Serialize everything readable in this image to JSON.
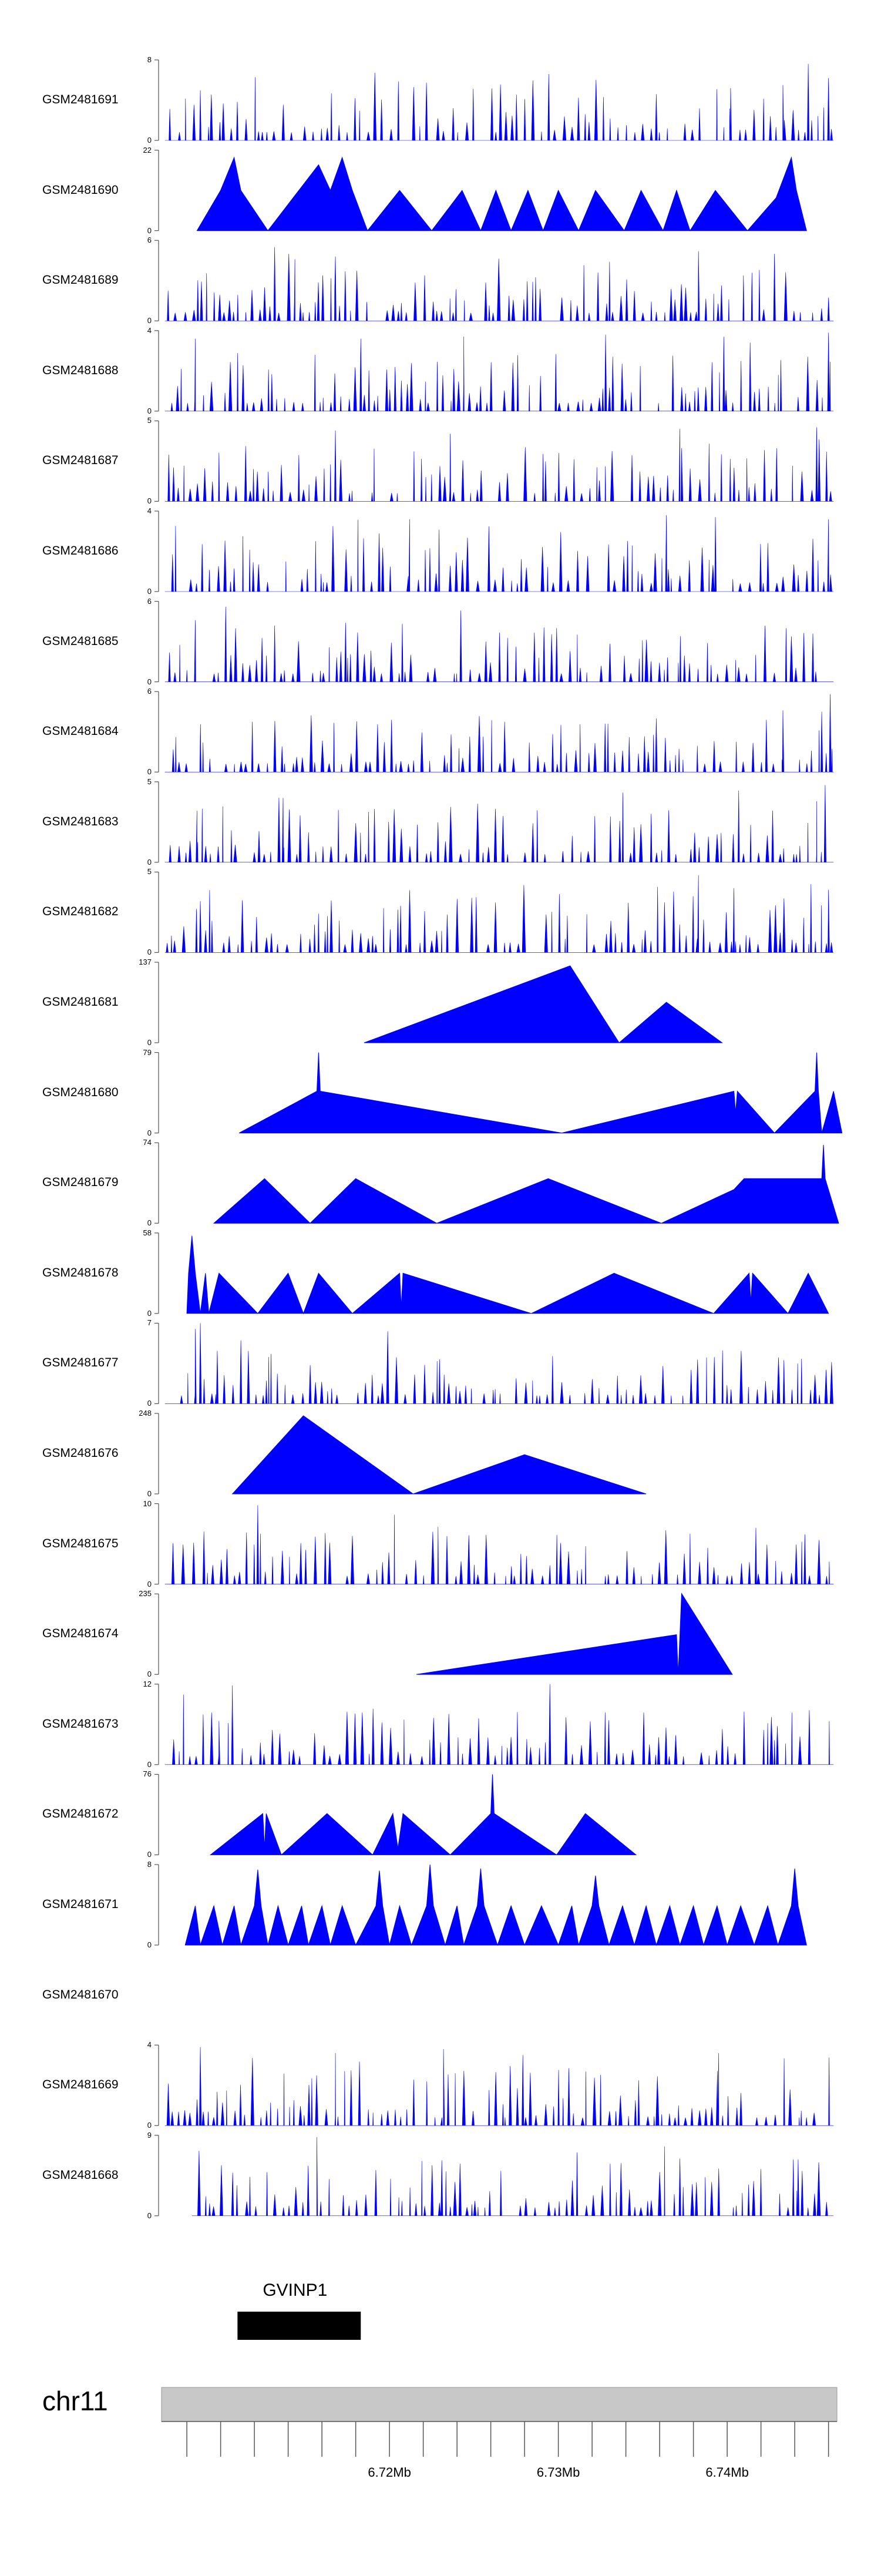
{
  "chart_data": {
    "type": "area",
    "title": "",
    "chromosome": "chr11",
    "xlim": [
      6.7065,
      6.7465
    ],
    "x_ticks": [
      "6.72Mb",
      "6.73Mb",
      "6.74Mb"
    ],
    "x_tick_values": [
      6.72,
      6.73,
      6.74
    ],
    "minor_tick_step": 0.002,
    "gene": {
      "name": "GVINP1",
      "start": 6.711,
      "end": 6.7183
    },
    "tracks": [
      {
        "name": "GSM2481691",
        "ymax": "8",
        "ymin": "0",
        "mode": "dense",
        "seed": 91,
        "peaks": [
          [
            6.7448,
            7.6
          ],
          [
            6.7402,
            5.2
          ],
          [
            6.7433,
            5.5
          ],
          [
            6.7358,
            4.6
          ],
          [
            6.746,
            6.2
          ]
        ]
      },
      {
        "name": "GSM2481690",
        "ymax": "22",
        "ymin": "0",
        "mode": "sparse",
        "points": [
          [
            6.7086,
            0
          ],
          [
            6.71,
            11
          ],
          [
            6.7108,
            20
          ],
          [
            6.7112,
            11
          ],
          [
            6.7128,
            0
          ],
          [
            6.7143,
            9
          ],
          [
            6.7158,
            18
          ],
          [
            6.7165,
            11
          ],
          [
            6.7172,
            20
          ],
          [
            6.7178,
            11
          ],
          [
            6.7187,
            0
          ],
          [
            6.7206,
            11
          ],
          [
            6.7225,
            0
          ],
          [
            6.7243,
            11
          ],
          [
            6.7254,
            0
          ],
          [
            6.7263,
            11
          ],
          [
            6.7272,
            0
          ],
          [
            6.7282,
            11
          ],
          [
            6.7291,
            0
          ],
          [
            6.73,
            11
          ],
          [
            6.7312,
            0
          ],
          [
            6.7322,
            11
          ],
          [
            6.7339,
            0
          ],
          [
            6.7349,
            11
          ],
          [
            6.7362,
            0
          ],
          [
            6.737,
            11
          ],
          [
            6.7378,
            0
          ],
          [
            6.7393,
            11
          ],
          [
            6.7412,
            0
          ],
          [
            6.7429,
            9
          ],
          [
            6.7438,
            20
          ],
          [
            6.7441,
            11
          ],
          [
            6.7447,
            0
          ]
        ]
      },
      {
        "name": "GSM2481689",
        "ymax": "6",
        "ymin": "0",
        "mode": "dense",
        "seed": 89,
        "peaks": [
          [
            6.7132,
            5.5
          ],
          [
            6.7144,
            4.6
          ],
          [
            6.7168,
            4.8
          ],
          [
            6.7383,
            5.2
          ],
          [
            6.7428,
            5.0
          ]
        ]
      },
      {
        "name": "GSM2481688",
        "ymax": "4",
        "ymin": "0",
        "mode": "dense",
        "seed": 88,
        "peaks": [
          [
            6.7085,
            3.6
          ],
          [
            6.7183,
            3.6
          ],
          [
            6.7244,
            3.7
          ],
          [
            6.7328,
            3.8
          ],
          [
            6.7398,
            3.7
          ],
          [
            6.746,
            3.9
          ]
        ]
      },
      {
        "name": "GSM2481687",
        "ymax": "5",
        "ymin": "0",
        "mode": "dense",
        "seed": 87,
        "peaks": [
          [
            6.7168,
            4.4
          ],
          [
            6.7236,
            4.2
          ],
          [
            6.7372,
            4.5
          ],
          [
            6.7453,
            4.6
          ]
        ]
      },
      {
        "name": "GSM2481686",
        "ymax": "4",
        "ymin": "0",
        "mode": "dense",
        "seed": 86,
        "peaks": [
          [
            6.7364,
            3.8
          ],
          [
            6.7393,
            3.7
          ],
          [
            6.7212,
            3.6
          ],
          [
            6.746,
            3.6
          ]
        ]
      },
      {
        "name": "GSM2481685",
        "ymax": "6",
        "ymin": "0",
        "mode": "dense",
        "seed": 85,
        "peaks": [
          [
            6.7085,
            4.6
          ],
          [
            6.7103,
            5.6
          ],
          [
            6.7132,
            4.2
          ],
          [
            6.7174,
            4.4
          ],
          [
            6.7299,
            4.0
          ]
        ]
      },
      {
        "name": "GSM2481684",
        "ymax": "6",
        "ymin": "0",
        "mode": "dense",
        "seed": 84,
        "peaks": [
          [
            6.7358,
            4.0
          ],
          [
            6.7433,
            4.6
          ],
          [
            6.7461,
            5.8
          ],
          [
            6.7456,
            4.5
          ]
        ]
      },
      {
        "name": "GSM2481683",
        "ymax": "5",
        "ymin": "0",
        "mode": "dense",
        "seed": 83,
        "peaks": [
          [
            6.7137,
            4.0
          ],
          [
            6.7458,
            4.8
          ],
          [
            6.7453,
            3.8
          ],
          [
            6.7086,
            3.2
          ]
        ]
      },
      {
        "name": "GSM2481682",
        "ymax": "5",
        "ymin": "0",
        "mode": "dense",
        "seed": 82,
        "peaks": [
          [
            6.7383,
            4.8
          ],
          [
            6.7404,
            4.0
          ],
          [
            6.7088,
            3.2
          ],
          [
            6.746,
            3.9
          ]
        ]
      },
      {
        "name": "GSM2481681",
        "ymax": "137",
        "ymin": "0",
        "mode": "sparse",
        "points": [
          [
            6.7185,
            0
          ],
          [
            6.7307,
            131
          ],
          [
            6.7336,
            0
          ],
          [
            6.7364,
            69
          ],
          [
            6.7397,
            0
          ]
        ]
      },
      {
        "name": "GSM2481680",
        "ymax": "79",
        "ymin": "0",
        "mode": "sparse",
        "points": [
          [
            6.7111,
            0
          ],
          [
            6.7157,
            41
          ],
          [
            6.7158,
            79
          ],
          [
            6.7159,
            41
          ],
          [
            6.7302,
            0
          ],
          [
            6.7404,
            41
          ],
          [
            6.7405,
            20
          ],
          [
            6.7406,
            41
          ],
          [
            6.7428,
            0
          ],
          [
            6.7452,
            41
          ],
          [
            6.7453,
            79
          ],
          [
            6.7454,
            41
          ],
          [
            6.7456,
            0
          ],
          [
            6.7463,
            41
          ],
          [
            6.7468,
            0
          ]
        ]
      },
      {
        "name": "GSM2481679",
        "ymax": "74",
        "ymin": "0",
        "mode": "sparse",
        "points": [
          [
            6.7096,
            0
          ],
          [
            6.7126,
            41
          ],
          [
            6.7153,
            0
          ],
          [
            6.718,
            41
          ],
          [
            6.7228,
            0
          ],
          [
            6.7294,
            41
          ],
          [
            6.7361,
            0
          ],
          [
            6.7404,
            31
          ],
          [
            6.741,
            41
          ],
          [
            6.7456,
            41
          ],
          [
            6.7457,
            72
          ],
          [
            6.7458,
            41
          ],
          [
            6.7466,
            0
          ]
        ]
      },
      {
        "name": "GSM2481678",
        "ymax": "58",
        "ymin": "0",
        "mode": "sparse",
        "points": [
          [
            6.708,
            0
          ],
          [
            6.7081,
            29
          ],
          [
            6.7083,
            56
          ],
          [
            6.7085,
            29
          ],
          [
            6.7088,
            0
          ],
          [
            6.7091,
            29
          ],
          [
            6.7093,
            0
          ],
          [
            6.7099,
            29
          ],
          [
            6.7122,
            0
          ],
          [
            6.714,
            29
          ],
          [
            6.7149,
            0
          ],
          [
            6.7158,
            29
          ],
          [
            6.7178,
            0
          ],
          [
            6.7206,
            29
          ],
          [
            6.7207,
            4
          ],
          [
            6.7208,
            29
          ],
          [
            6.7284,
            0
          ],
          [
            6.7333,
            29
          ],
          [
            6.7392,
            0
          ],
          [
            6.7413,
            29
          ],
          [
            6.7414,
            8
          ],
          [
            6.7415,
            29
          ],
          [
            6.7436,
            0
          ],
          [
            6.7448,
            29
          ],
          [
            6.746,
            0
          ]
        ]
      },
      {
        "name": "GSM2481677",
        "ymax": "7",
        "ymin": "0",
        "mode": "dense",
        "seed": 77,
        "peaks": [
          [
            6.7088,
            7.0
          ],
          [
            6.7085,
            6.5
          ],
          [
            6.7112,
            5.5
          ],
          [
            6.7098,
            4.6
          ]
        ]
      },
      {
        "name": "GSM2481676",
        "ymax": "248",
        "ymin": "0",
        "mode": "sparse",
        "points": [
          [
            6.7107,
            0
          ],
          [
            6.7149,
            241
          ],
          [
            6.7214,
            0
          ],
          [
            6.728,
            121
          ],
          [
            6.7352,
            0
          ]
        ]
      },
      {
        "name": "GSM2481675",
        "ymax": "10",
        "ymin": "0",
        "mode": "dense",
        "seed": 75,
        "peaks": [
          [
            6.7122,
            9.8
          ],
          [
            6.7417,
            7.0
          ],
          [
            6.7446,
            6.2
          ]
        ]
      },
      {
        "name": "GSM2481674",
        "ymax": "235",
        "ymin": "0",
        "mode": "sparse",
        "points": [
          [
            6.7216,
            0
          ],
          [
            6.737,
            116
          ],
          [
            6.7371,
            0
          ],
          [
            6.7372,
            116
          ],
          [
            6.7373,
            236
          ],
          [
            6.7403,
            0
          ]
        ]
      },
      {
        "name": "GSM2481673",
        "ymax": "12",
        "ymin": "0",
        "mode": "dense",
        "seed": 73,
        "peaks": [
          [
            6.7107,
            11.8
          ],
          [
            6.7295,
            12.0
          ],
          [
            6.7099,
            6.5
          ]
        ]
      },
      {
        "name": "GSM2481672",
        "ymax": "76",
        "ymin": "0",
        "mode": "sparse",
        "points": [
          [
            6.7094,
            0
          ],
          [
            6.7125,
            39
          ],
          [
            6.7126,
            6
          ],
          [
            6.7127,
            39
          ],
          [
            6.7136,
            0
          ],
          [
            6.7163,
            39
          ],
          [
            6.719,
            0
          ],
          [
            6.7202,
            39
          ],
          [
            6.7205,
            6
          ],
          [
            6.7208,
            39
          ],
          [
            6.7236,
            0
          ],
          [
            6.726,
            39
          ],
          [
            6.7261,
            76
          ],
          [
            6.7262,
            39
          ],
          [
            6.7299,
            0
          ],
          [
            6.7316,
            39
          ],
          [
            6.7346,
            0
          ]
        ]
      },
      {
        "name": "GSM2481671",
        "ymax": "8",
        "ymin": "0",
        "mode": "sparse",
        "points": [
          [
            6.7079,
            0
          ],
          [
            6.7085,
            3.9
          ],
          [
            6.7088,
            0
          ],
          [
            6.7096,
            3.9
          ],
          [
            6.7101,
            0
          ],
          [
            6.7108,
            3.9
          ],
          [
            6.7112,
            0
          ],
          [
            6.712,
            3.9
          ],
          [
            6.7122,
            7.5
          ],
          [
            6.7124,
            3.9
          ],
          [
            6.7128,
            0
          ],
          [
            6.7134,
            3.9
          ],
          [
            6.714,
            0
          ],
          [
            6.7148,
            3.9
          ],
          [
            6.7152,
            0
          ],
          [
            6.716,
            3.9
          ],
          [
            6.7165,
            0
          ],
          [
            6.7172,
            3.9
          ],
          [
            6.718,
            0
          ],
          [
            6.7192,
            3.9
          ],
          [
            6.7194,
            7.4
          ],
          [
            6.7196,
            3.9
          ],
          [
            6.72,
            0
          ],
          [
            6.7206,
            3.9
          ],
          [
            6.7213,
            0
          ],
          [
            6.7222,
            3.9
          ],
          [
            6.7224,
            8.0
          ],
          [
            6.7226,
            3.9
          ],
          [
            6.7233,
            0
          ],
          [
            6.724,
            3.9
          ],
          [
            6.7244,
            0
          ],
          [
            6.7252,
            3.9
          ],
          [
            6.7254,
            7.6
          ],
          [
            6.7256,
            3.9
          ],
          [
            6.7264,
            0
          ],
          [
            6.7272,
            3.9
          ],
          [
            6.728,
            0
          ],
          [
            6.729,
            3.9
          ],
          [
            6.73,
            0
          ],
          [
            6.7308,
            3.9
          ],
          [
            6.7312,
            0
          ],
          [
            6.732,
            3.9
          ],
          [
            6.7322,
            6.9
          ],
          [
            6.7324,
            3.9
          ],
          [
            6.733,
            0
          ],
          [
            6.7338,
            3.9
          ],
          [
            6.7345,
            0
          ],
          [
            6.7352,
            3.9
          ],
          [
            6.7358,
            0
          ],
          [
            6.7366,
            3.9
          ],
          [
            6.7372,
            0
          ],
          [
            6.738,
            3.9
          ],
          [
            6.7386,
            0
          ],
          [
            6.7394,
            3.9
          ],
          [
            6.74,
            0
          ],
          [
            6.7408,
            3.9
          ],
          [
            6.7416,
            0
          ],
          [
            6.7424,
            3.9
          ],
          [
            6.743,
            0
          ],
          [
            6.7438,
            3.9
          ],
          [
            6.744,
            7.6
          ],
          [
            6.7442,
            3.9
          ],
          [
            6.7447,
            0
          ]
        ]
      },
      {
        "name": "GSM2481670",
        "ymax": "",
        "ymin": "",
        "mode": "empty"
      },
      {
        "name": "GSM2481669",
        "ymax": "4",
        "ymin": "0",
        "mode": "dense",
        "seed": 69,
        "peaks": [
          [
            6.7088,
            3.9
          ],
          [
            6.7168,
            3.6
          ],
          [
            6.7232,
            3.8
          ],
          [
            6.7279,
            3.5
          ],
          [
            6.7395,
            3.6
          ]
        ]
      },
      {
        "name": "GSM2481668",
        "ymax": "9",
        "ymin": "0",
        "mode": "dense",
        "seed": 68,
        "start": 6.7083,
        "peaks": [
          [
            6.7157,
            8.8
          ],
          [
            6.7231,
            6.2
          ],
          [
            6.7372,
            6.4
          ],
          [
            6.7442,
            6.3
          ]
        ]
      }
    ]
  }
}
